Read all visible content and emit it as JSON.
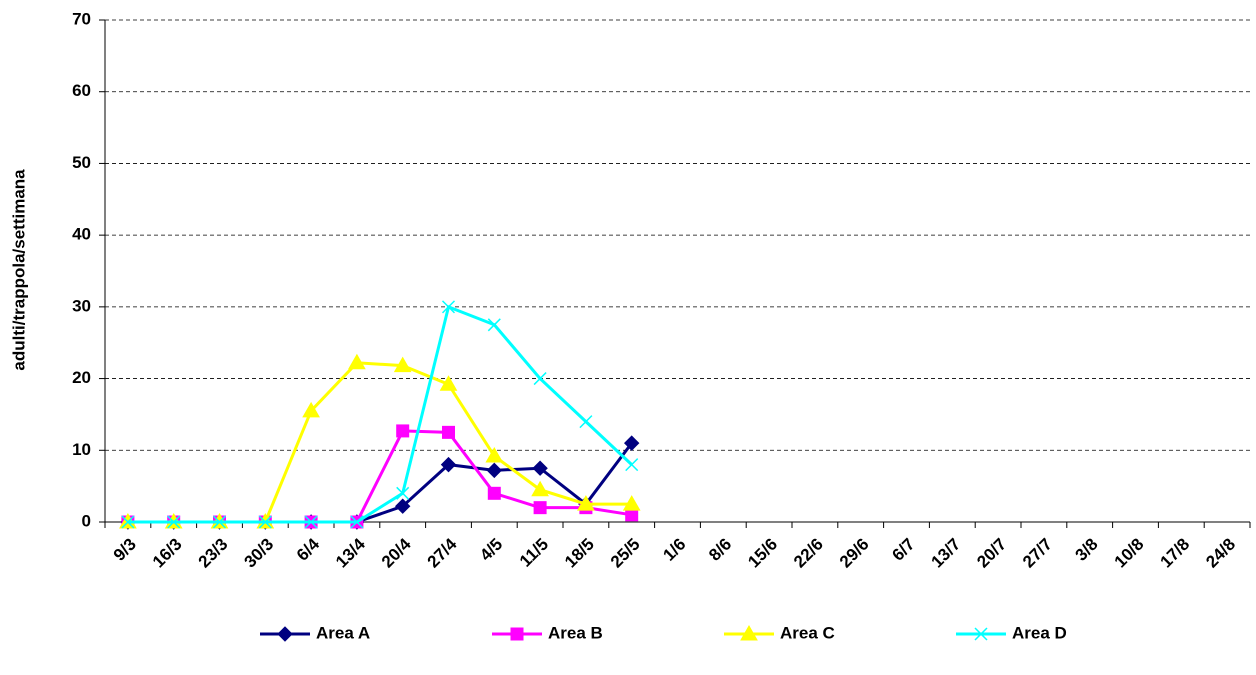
{
  "chart_data": {
    "type": "line",
    "y_label": "adulti/trappola/settimana",
    "categories": [
      "9/3",
      "16/3",
      "23/3",
      "30/3",
      "6/4",
      "13/4",
      "20/4",
      "27/4",
      "4/5",
      "11/5",
      "18/5",
      "25/5",
      "1/6",
      "8/6",
      "15/6",
      "22/6",
      "29/6",
      "6/7",
      "13/7",
      "20/7",
      "27/7",
      "3/8",
      "10/8",
      "17/8",
      "24/8"
    ],
    "series": [
      {
        "name": "Area A",
        "color": "#000080",
        "marker": "diamond",
        "values": [
          0,
          0,
          0,
          0,
          0,
          0,
          2.2,
          8,
          7.2,
          7.5,
          2.5,
          11,
          null,
          null,
          null,
          null,
          null,
          null,
          null,
          null,
          null,
          null,
          null,
          null,
          null
        ]
      },
      {
        "name": "Area B",
        "color": "#ff00ff",
        "marker": "square",
        "values": [
          0,
          0,
          0,
          0,
          0,
          0,
          12.7,
          12.5,
          4,
          2,
          2,
          1,
          null,
          null,
          null,
          null,
          null,
          null,
          null,
          null,
          null,
          null,
          null,
          null,
          null
        ]
      },
      {
        "name": "Area C",
        "color": "#ffff00",
        "marker": "triangle",
        "values": [
          0,
          0,
          0,
          0,
          15.5,
          22.2,
          21.8,
          19.2,
          9.2,
          4.5,
          2.5,
          2.5,
          null,
          null,
          null,
          null,
          null,
          null,
          null,
          null,
          null,
          null,
          null,
          null,
          null
        ]
      },
      {
        "name": "Area D",
        "color": "#00ffff",
        "marker": "x",
        "values": [
          0,
          0,
          0,
          0,
          0,
          0,
          4,
          30,
          27.5,
          20,
          14,
          8,
          null,
          null,
          null,
          null,
          null,
          null,
          null,
          null,
          null,
          null,
          null,
          null,
          null
        ]
      }
    ],
    "ylim": [
      0,
      70
    ],
    "yticks": [
      0,
      10,
      20,
      30,
      40,
      50,
      60,
      70
    ],
    "grid": true,
    "legend": "bottom"
  }
}
